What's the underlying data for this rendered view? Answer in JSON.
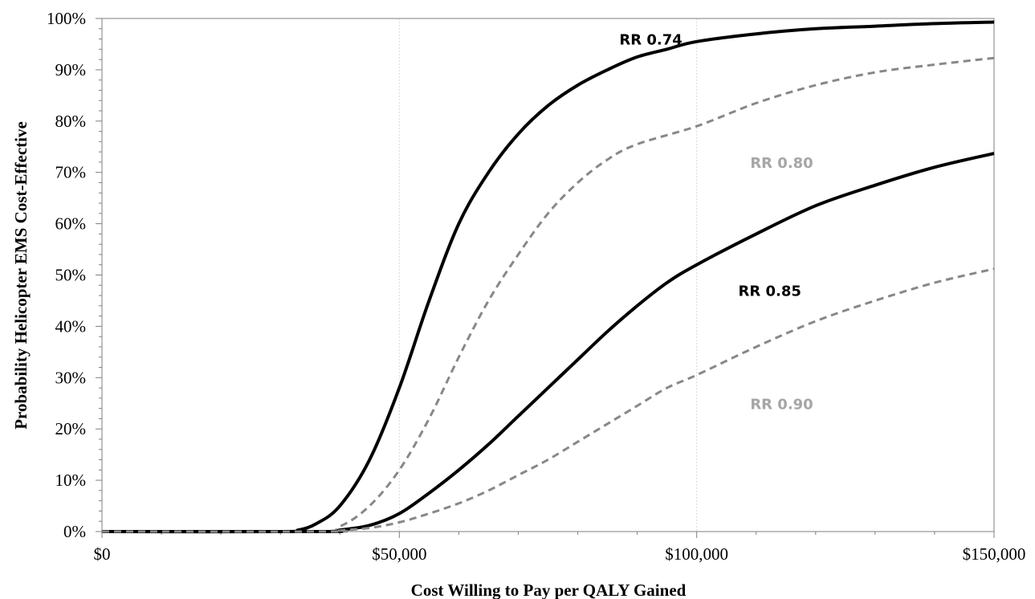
{
  "chart_data": {
    "type": "line",
    "title": "",
    "xlabel": "Cost Willing to Pay per QALY Gained",
    "ylabel": "Probability  Helicopter EMS Cost-Effective",
    "xlim": [
      0,
      150000
    ],
    "ylim": [
      0,
      100
    ],
    "x_tick_labels": [
      {
        "value": 0,
        "label": "$0"
      },
      {
        "value": 50000,
        "label": "$50,000"
      },
      {
        "value": 100000,
        "label": "$100,000"
      },
      {
        "value": 150000,
        "label": "$150,000"
      }
    ],
    "y_tick_labels": [
      {
        "value": 0,
        "label": "0%"
      },
      {
        "value": 10,
        "label": "10%"
      },
      {
        "value": 20,
        "label": "20%"
      },
      {
        "value": 30,
        "label": "30%"
      },
      {
        "value": 40,
        "label": "40%"
      },
      {
        "value": 50,
        "label": "50%"
      },
      {
        "value": 60,
        "label": "60%"
      },
      {
        "value": 70,
        "label": "70%"
      },
      {
        "value": 80,
        "label": "80%"
      },
      {
        "value": 90,
        "label": "90%"
      },
      {
        "value": 100,
        "label": "100%"
      }
    ],
    "grid": "vertical dotted lines at x tick labels",
    "series": [
      {
        "name": "RR 0.74",
        "style": "solid",
        "color": "#000000",
        "label_at": [
          87000,
          96
        ],
        "points": [
          [
            0,
            0
          ],
          [
            30000,
            0
          ],
          [
            33000,
            0.3
          ],
          [
            36000,
            1.5
          ],
          [
            40000,
            5
          ],
          [
            45000,
            14
          ],
          [
            50000,
            28
          ],
          [
            55000,
            45
          ],
          [
            60000,
            60
          ],
          [
            65000,
            70
          ],
          [
            70000,
            77.5
          ],
          [
            75000,
            83
          ],
          [
            80000,
            87
          ],
          [
            85000,
            90
          ],
          [
            90000,
            92.5
          ],
          [
            95000,
            94
          ],
          [
            100000,
            95.5
          ],
          [
            110000,
            97
          ],
          [
            120000,
            98
          ],
          [
            130000,
            98.5
          ],
          [
            140000,
            99
          ],
          [
            150000,
            99.3
          ]
        ]
      },
      {
        "name": "RR 0.80",
        "style": "dashed",
        "color": "#888888",
        "label_at": [
          109000,
          72
        ],
        "points": [
          [
            0,
            0
          ],
          [
            35000,
            0
          ],
          [
            40000,
            1
          ],
          [
            45000,
            5
          ],
          [
            50000,
            12
          ],
          [
            55000,
            22
          ],
          [
            60000,
            34
          ],
          [
            65000,
            45
          ],
          [
            70000,
            54
          ],
          [
            75000,
            62
          ],
          [
            80000,
            68
          ],
          [
            85000,
            72.5
          ],
          [
            90000,
            75.5
          ],
          [
            100000,
            79
          ],
          [
            110000,
            83.5
          ],
          [
            120000,
            87
          ],
          [
            130000,
            89.5
          ],
          [
            140000,
            91
          ],
          [
            150000,
            92.3
          ]
        ]
      },
      {
        "name": "RR 0.85",
        "style": "solid",
        "color": "#000000",
        "label_at": [
          107000,
          47
        ],
        "points": [
          [
            0,
            0
          ],
          [
            37000,
            0
          ],
          [
            40000,
            0.3
          ],
          [
            45000,
            1.2
          ],
          [
            50000,
            3.5
          ],
          [
            55000,
            7.5
          ],
          [
            60000,
            12
          ],
          [
            65000,
            17
          ],
          [
            70000,
            22.5
          ],
          [
            75000,
            28
          ],
          [
            80000,
            33.5
          ],
          [
            85000,
            39
          ],
          [
            90000,
            44
          ],
          [
            95000,
            48.5
          ],
          [
            100000,
            52
          ],
          [
            110000,
            58
          ],
          [
            120000,
            63.5
          ],
          [
            130000,
            67.5
          ],
          [
            140000,
            71
          ],
          [
            150000,
            73.7
          ]
        ]
      },
      {
        "name": "RR 0.90",
        "style": "dashed",
        "color": "#888888",
        "label_at": [
          109000,
          25
        ],
        "points": [
          [
            0,
            0
          ],
          [
            38000,
            0
          ],
          [
            40000,
            0.2
          ],
          [
            45000,
            0.7
          ],
          [
            50000,
            1.8
          ],
          [
            55000,
            3.5
          ],
          [
            60000,
            5.5
          ],
          [
            65000,
            8
          ],
          [
            70000,
            11
          ],
          [
            75000,
            14
          ],
          [
            80000,
            17.5
          ],
          [
            85000,
            21
          ],
          [
            90000,
            24.5
          ],
          [
            95000,
            28
          ],
          [
            100000,
            30.5
          ],
          [
            110000,
            36
          ],
          [
            120000,
            41
          ],
          [
            130000,
            45
          ],
          [
            140000,
            48.5
          ],
          [
            150000,
            51.2
          ]
        ]
      }
    ]
  }
}
